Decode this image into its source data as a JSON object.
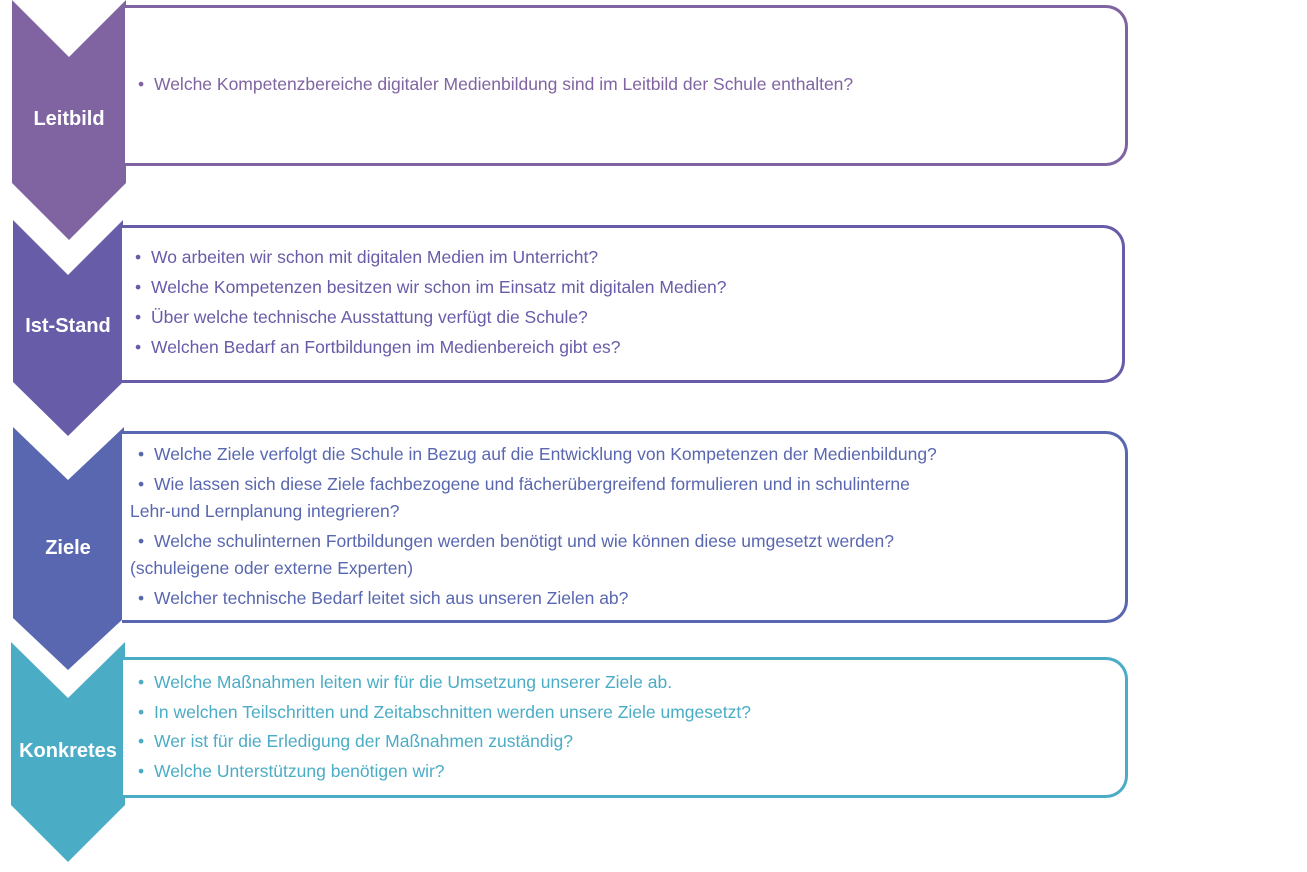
{
  "steps": [
    {
      "label": "Leitbild",
      "color": "#8064a2",
      "items": [
        "Welche Kompetenzbereiche digitaler Medienbildung sind im Leitbild der Schule enthalten?"
      ]
    },
    {
      "label": "Ist-Stand",
      "color": "#675ca8",
      "items": [
        "Wo arbeiten wir schon mit digitalen Medien im Unterricht?",
        "Welche Kompetenzen besitzen wir schon im Einsatz mit digitalen Medien?",
        "Über welche technische Ausstattung verfügt die Schule?",
        "Welchen Bedarf an Fortbildungen im Medienbereich gibt es?"
      ]
    },
    {
      "label": "Ziele",
      "color": "#5967b0",
      "items": [
        "Welche Ziele verfolgt die Schule in Bezug auf die Entwicklung von Kompetenzen der Medienbildung?",
        "Wie lassen sich diese Ziele fachbezogene und fächerübergreifend formulieren und in schulinterne",
        "Lehr-und Lernplanung integrieren?",
        "Welche schulinternen Fortbildungen werden benötigt und wie können diese umgesetzt werden?",
        "(schuleigene oder externe Experten)",
        "Welcher technische Bedarf leitet sich aus unseren Zielen ab?"
      ]
    },
    {
      "label": "Konkretes",
      "color": "#4bacc6",
      "items": [
        "Welche Maßnahmen leiten wir für die Umsetzung unserer Ziele ab.",
        "In welchen Teilschritten und Zeitabschnitten werden unsere Ziele umgesetzt?",
        "Wer ist für die Erledigung der Maßnahmen zuständig?",
        "Welche Unterstützung benötigen wir?"
      ]
    }
  ]
}
